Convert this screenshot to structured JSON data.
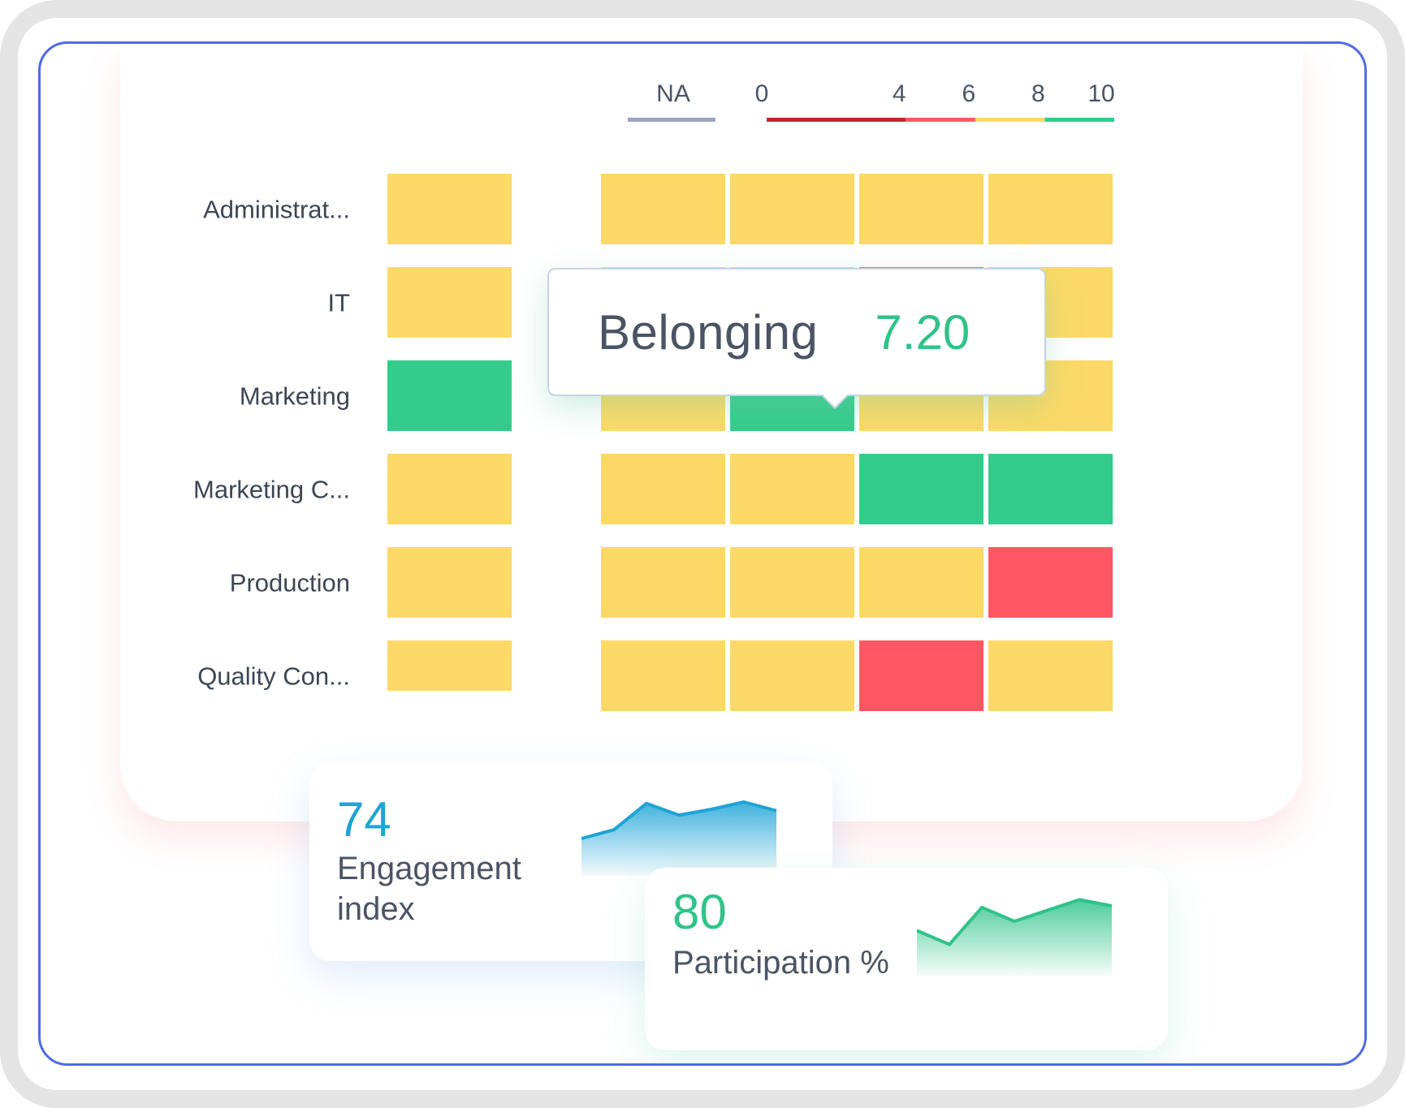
{
  "chart_data": {
    "type": "heatmap",
    "title": "",
    "rows": [
      "Administrat...",
      "IT",
      "Marketing",
      "Marketing C...",
      "Production",
      "Quality Con..."
    ],
    "columns": [
      "",
      "",
      "",
      "",
      ""
    ],
    "cells": [
      [
        "yellow",
        "yellow",
        "yellow",
        "yellow",
        "yellow"
      ],
      [
        "yellow",
        "yellow",
        "yellow",
        "green",
        "yellow"
      ],
      [
        "green",
        "yellow",
        "green",
        "yellow",
        "yellow"
      ],
      [
        "yellow",
        "yellow",
        "yellow",
        "green",
        "green"
      ],
      [
        "yellow",
        "yellow",
        "yellow",
        "yellow",
        "red"
      ],
      [
        "yellow",
        "yellow",
        "yellow",
        "red",
        "yellow"
      ]
    ],
    "legend": {
      "na_label": "NA",
      "ticks": [
        "0",
        "4",
        "6",
        "8",
        "10"
      ],
      "segments": [
        {
          "from": 0,
          "to": 4,
          "color": "#c0282f"
        },
        {
          "from": 4,
          "to": 6,
          "color": "#fe5a63"
        },
        {
          "from": 6,
          "to": 8,
          "color": "#fcd966"
        },
        {
          "from": 8,
          "to": 10,
          "color": "#2fcd8d"
        }
      ],
      "placement": "top-right"
    },
    "colors": {
      "yellow": "#fcd966",
      "green": "#33cc8c",
      "red": "#fe5763",
      "na": "#9aa6bd"
    }
  },
  "tooltip": {
    "label": "Belonging",
    "value": "7.20"
  },
  "engagement": {
    "value": "74",
    "label": "Engagement index",
    "trend": [
      40,
      52,
      88,
      72,
      80,
      90,
      78
    ],
    "color": "#1ea4d6"
  },
  "participation": {
    "value": "80",
    "label": "Participation %",
    "trend": [
      48,
      30,
      78,
      60,
      74,
      88,
      80
    ],
    "color": "#2fc38a"
  }
}
